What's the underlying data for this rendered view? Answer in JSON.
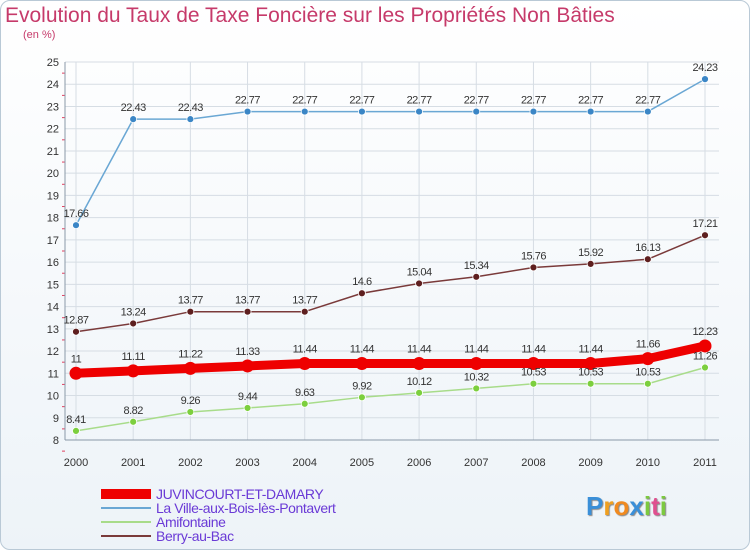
{
  "header": {
    "title": "Evolution du Taux de Taxe Foncière sur les Propriétés Non Bâties",
    "unit": "(en %)"
  },
  "chart_data": {
    "type": "line",
    "title": "Evolution du Taux de Taxe Foncière sur les Propriétés Non Bâties",
    "ylabel": "(en %)",
    "xlabel": "",
    "categories": [
      "2000",
      "2001",
      "2002",
      "2003",
      "2004",
      "2005",
      "2006",
      "2007",
      "2008",
      "2009",
      "2010",
      "2011"
    ],
    "ylim": [
      8,
      25
    ],
    "yticks": [
      8,
      9,
      10,
      11,
      12,
      13,
      14,
      15,
      16,
      17,
      18,
      19,
      20,
      21,
      22,
      23,
      24,
      25
    ],
    "grid": true,
    "series": [
      {
        "name": "La Ville-aux-Bois-lès-Pontavert",
        "color": "#6aa7d4",
        "marker": "#3b86c6",
        "values": [
          17.66,
          22.43,
          22.43,
          22.77,
          22.77,
          22.77,
          22.77,
          22.77,
          22.77,
          22.77,
          22.77,
          24.23
        ],
        "labels": [
          "17.66",
          "22.43",
          "22.43",
          "22.77",
          "22.77",
          "22.77",
          "22.77",
          "22.77",
          "22.77",
          "22.77",
          "22.77",
          "24.23"
        ]
      },
      {
        "name": "Berry-au-Bac",
        "color": "#7a3a3a",
        "marker": "#5e1f1f",
        "values": [
          12.87,
          13.24,
          13.77,
          13.77,
          13.77,
          14.6,
          15.04,
          15.34,
          15.76,
          15.92,
          16.13,
          17.21
        ],
        "labels": [
          "12.87",
          "13.24",
          "13.77",
          "13.77",
          "13.77",
          "14.6",
          "15.04",
          "15.34",
          "15.76",
          "15.92",
          "16.13",
          "17.21"
        ]
      },
      {
        "name": "JUVINCOURT-ET-DAMARY",
        "color": "#ee0000",
        "marker": "#ee0000",
        "values": [
          11,
          11.11,
          11.22,
          11.33,
          11.44,
          11.44,
          11.44,
          11.44,
          11.44,
          11.44,
          11.66,
          12.23
        ],
        "labels": [
          "11",
          "11.11",
          "11.22",
          "11.33",
          "11.44",
          "11.44",
          "11.44",
          "11.44",
          "11.44",
          "11.44",
          "11.66",
          "12.23"
        ]
      },
      {
        "name": "Amifontaine",
        "color": "#a8dc8a",
        "marker": "#7ccf3e",
        "values": [
          8.41,
          8.82,
          9.26,
          9.44,
          9.63,
          9.92,
          10.12,
          10.32,
          10.53,
          10.53,
          10.53,
          11.26
        ],
        "labels": [
          "8.41",
          "8.82",
          "9.26",
          "9.44",
          "9.63",
          "9.92",
          "10.12",
          "10.32",
          "10.53",
          "10.53",
          "10.53",
          "11.26"
        ]
      }
    ]
  },
  "legend": [
    {
      "label": "JUVINCOURT-ET-DAMARY",
      "color": "#ee0000",
      "thick": true
    },
    {
      "label": "La Ville-aux-Bois-lès-Pontavert",
      "color": "#6aa7d4",
      "thick": false
    },
    {
      "label": "Amifontaine",
      "color": "#a8dc8a",
      "thick": false
    },
    {
      "label": "Berry-au-Bac",
      "color": "#7a3a3a",
      "thick": false
    }
  ],
  "logo": {
    "text": "Proxiti",
    "letters": [
      "P",
      "r",
      "o",
      "x",
      "i",
      "t",
      "i"
    ],
    "colors": [
      "#3a8fd8",
      "#f0a020",
      "#f08a20",
      "#3a8fd8",
      "#7cc940",
      "#e05090",
      "#7cc940"
    ]
  }
}
